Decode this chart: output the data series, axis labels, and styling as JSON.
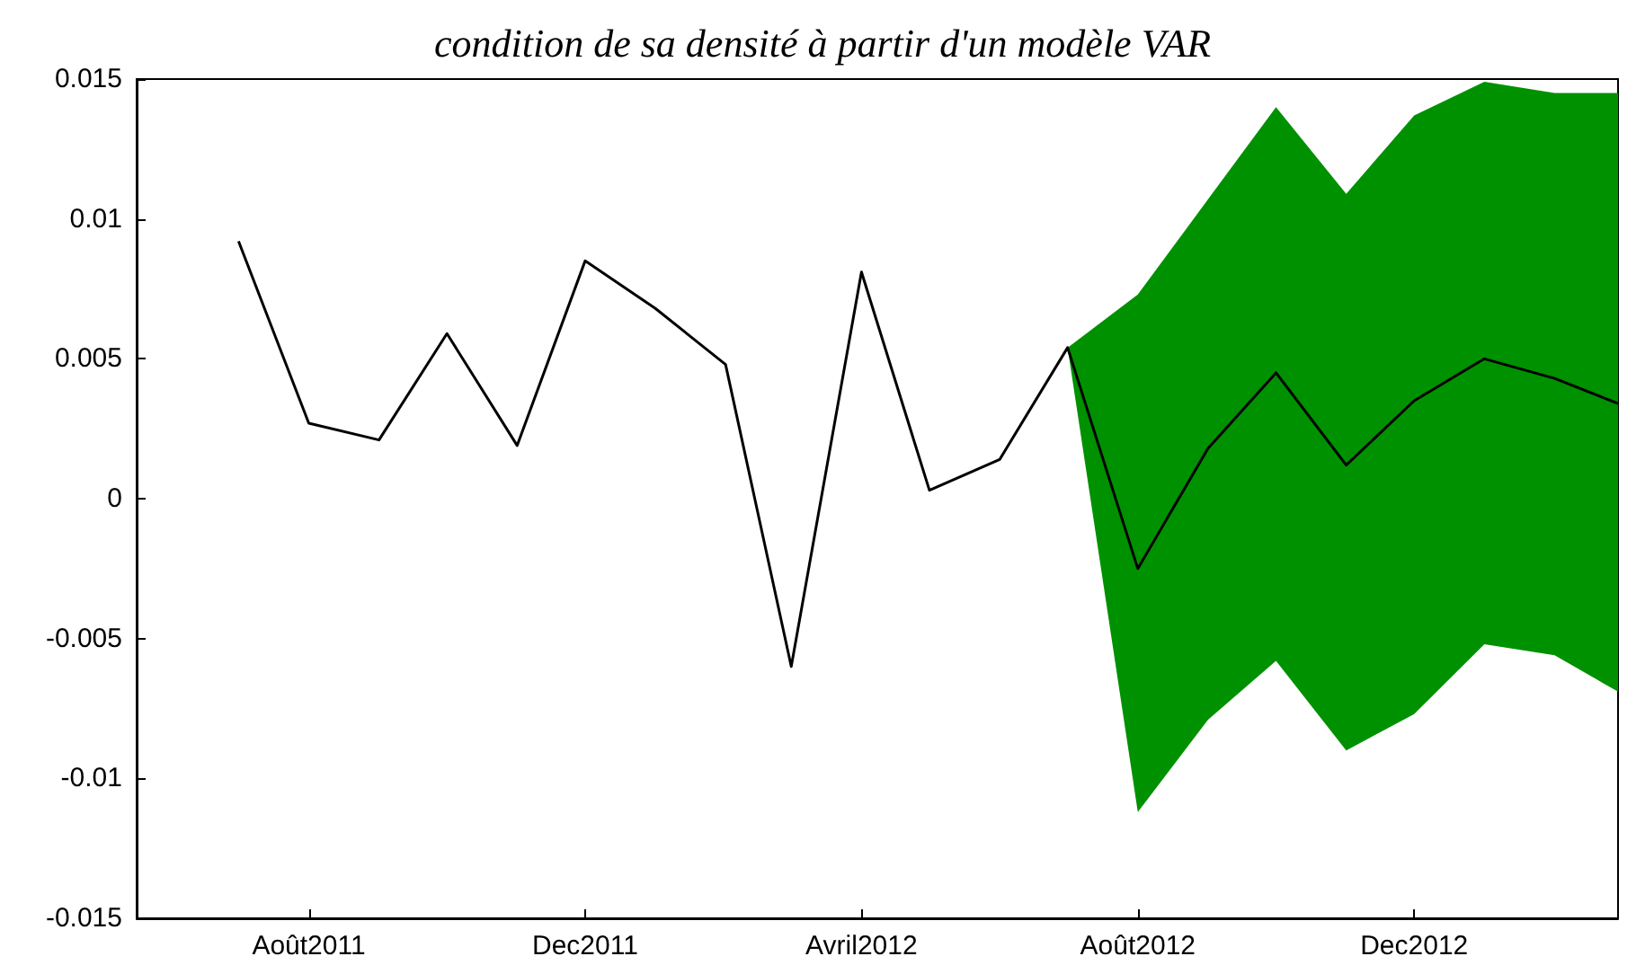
{
  "chart_data": {
    "type": "line",
    "title": "condition de sa densité à partir d'un modèle VAR",
    "x": [
      "2011-07",
      "2011-08",
      "2011-09",
      "2011-10",
      "2011-11",
      "2011-12",
      "2012-01",
      "2012-02",
      "2012-03",
      "2012-04",
      "2012-05",
      "2012-06",
      "2012-07",
      "2012-08",
      "2012-09",
      "2012-10",
      "2012-11",
      "2012-12",
      "2013-01",
      "2013-02",
      "2013-03"
    ],
    "series": [
      {
        "color": "#000000",
        "values": [
          0.0092,
          0.0027,
          0.0021,
          0.0059,
          0.0019,
          0.0085,
          0.0068,
          0.0048,
          -0.006,
          0.0081,
          0.0003,
          0.0014,
          0.0054,
          -0.0025,
          0.0018,
          0.0045,
          0.0012,
          0.0035,
          0.005,
          0.0043,
          0.0034
        ],
        "lower": [
          null,
          null,
          null,
          null,
          null,
          null,
          null,
          null,
          null,
          null,
          null,
          null,
          0.0054,
          -0.0112,
          -0.0079,
          -0.0058,
          -0.009,
          -0.0077,
          -0.0052,
          -0.0056,
          -0.0069
        ],
        "upper": [
          null,
          null,
          null,
          null,
          null,
          null,
          null,
          null,
          null,
          null,
          null,
          null,
          0.0054,
          0.0073,
          0.0107,
          0.014,
          0.0109,
          0.0137,
          0.0149,
          0.0145,
          0.0145
        ]
      }
    ],
    "xlim": [
      "2011-05-17",
      "2013-03"
    ],
    "xticks": [
      {
        "value": "2011-08",
        "label": "Août2011"
      },
      {
        "value": "2011-12",
        "label": "Dec2011"
      },
      {
        "value": "2012-04",
        "label": "Avril2012"
      },
      {
        "value": "2012-08",
        "label": "Août2012"
      },
      {
        "value": "2012-12",
        "label": "Dec2012"
      }
    ],
    "ylim": [
      -0.015,
      0.015
    ],
    "yticks": [
      -0.015,
      -0.01,
      -0.005,
      0,
      0.005,
      0.01,
      0.015
    ],
    "grid": false,
    "marker": "none",
    "line_style": "solid"
  }
}
